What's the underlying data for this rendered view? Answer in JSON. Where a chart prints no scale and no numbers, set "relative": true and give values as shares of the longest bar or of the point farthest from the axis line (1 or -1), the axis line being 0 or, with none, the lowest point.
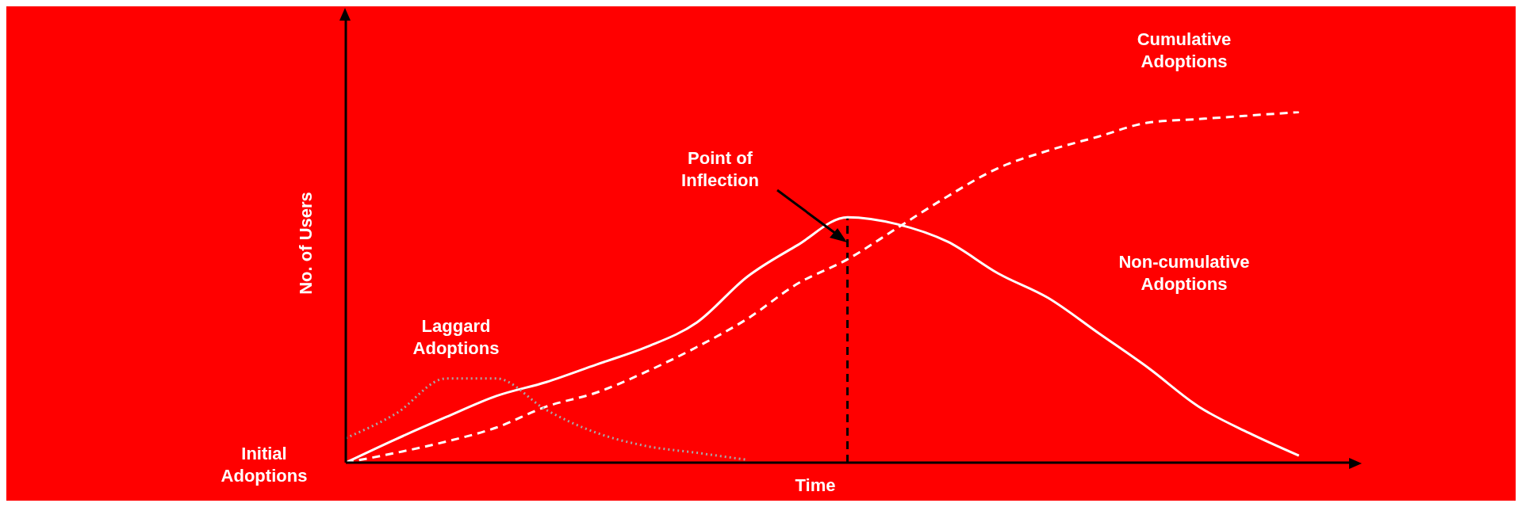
{
  "chart_data": {
    "type": "line",
    "relative": true,
    "xlabel": "Time",
    "ylabel": "No. of Users",
    "marker": "none",
    "categories": [
      null,
      null,
      null,
      null,
      null,
      null,
      null,
      null,
      null,
      null,
      null,
      null,
      null,
      null,
      null,
      null,
      null,
      null,
      null,
      null,
      null
    ],
    "series": [
      {
        "name": "Non-cumulative Adoptions",
        "color": "#ffffff",
        "line_style": "solid",
        "values": [
          0,
          0.067,
          0.13,
          0.19,
          0.23,
          0.28,
          0.33,
          0.4,
          0.53,
          0.62,
          0.7,
          0.68,
          0.63,
          0.54,
          0.47,
          0.37,
          0.27,
          0.16,
          0.085,
          0.02,
          null
        ]
      },
      {
        "name": "Cumulative Adoptions",
        "color": "#ffffff",
        "line_style": "dashed",
        "values": [
          0,
          0.028,
          0.06,
          0.1,
          0.16,
          0.2,
          0.26,
          0.33,
          0.41,
          0.51,
          0.58,
          0.67,
          0.76,
          0.84,
          0.89,
          0.93,
          0.97,
          0.98,
          0.99,
          1,
          null
        ]
      },
      {
        "name": "Laggard Adoptions",
        "color": "#a6a6a6",
        "line_style": "dotted",
        "values": [
          0.07,
          0.14,
          0.24,
          0.24,
          0.15,
          0.085,
          0.047,
          0.028,
          0.008,
          null,
          null,
          null,
          null,
          null,
          null,
          null,
          null,
          null,
          null,
          null,
          null
        ]
      }
    ],
    "annotations": [
      "Initial Adoptions",
      "Point of Inflection"
    ]
  }
}
